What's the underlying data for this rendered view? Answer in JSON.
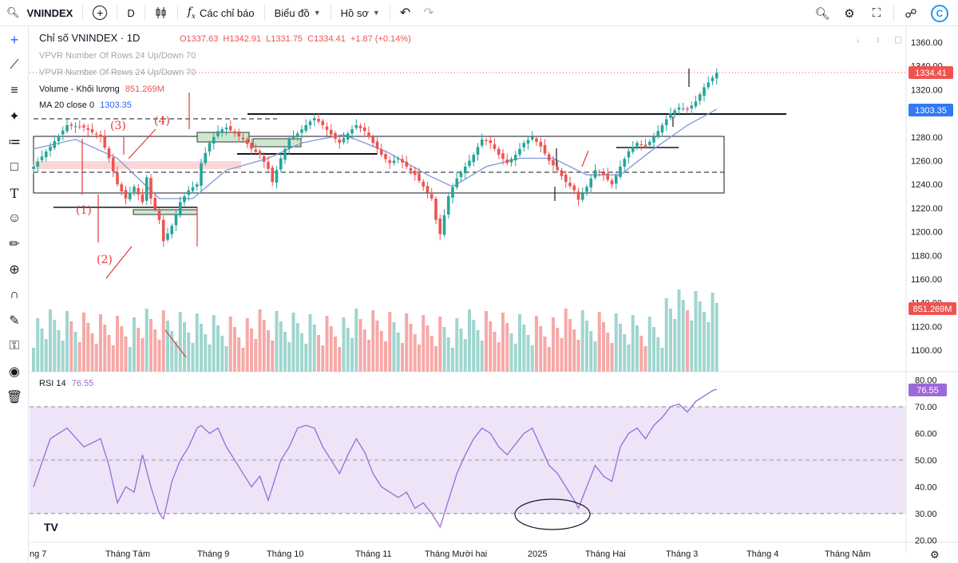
{
  "toolbar": {
    "symbol": "VNINDEX",
    "interval": "D",
    "indicators_label": "Các chỉ báo",
    "chart_label": "Biểu đồ",
    "profile_label": "Hồ sơ",
    "icons": [
      "search-icon",
      "add-symbol-icon",
      "candles-icon",
      "fx-icon",
      "undo-icon",
      "redo-icon",
      "snapshot-icon",
      "settings-icon",
      "fullscreen-icon",
      "share-icon",
      "tradingview-logo"
    ]
  },
  "left_tools": [
    "crosshair-icon",
    "trend-line-icon",
    "horizontal-lines-icon",
    "pattern-icon",
    "fib-icon",
    "rectangle-icon",
    "text-icon",
    "emoji-icon",
    "ruler-icon",
    "zoom-icon",
    "magnet-icon",
    "lock-drawing-icon",
    "lock-icon",
    "eye-icon",
    "trash-icon"
  ],
  "legend": {
    "title": "Chỉ số VNINDEX · 1D",
    "o": "O1337.63",
    "h": "H1342.91",
    "l": "L1331.75",
    "c": "C1334.41",
    "chg": "+1.87 (+0.14%)",
    "vpvr1": "VPVR Number Of Rows 24 Up/Down 70",
    "vpvr2": "VPVR Number Of Rows 24 Up/Down 70",
    "volume_label": "Volume - Khối lượng",
    "volume_value": "851.269M",
    "ma_label": "MA 20 close 0",
    "ma_value": "1303.35",
    "rsi_label": "RSI 14",
    "rsi_value": "76.55"
  },
  "price_axis": [
    "1360.00",
    "1340.00",
    "1320.00",
    "1300.00",
    "1280.00",
    "1260.00",
    "1240.00",
    "1220.00",
    "1200.00",
    "1180.00",
    "1160.00",
    "1140.00",
    "1120.00",
    "1100.00"
  ],
  "price_badges": {
    "last": "1334.41",
    "ma": "1303.35",
    "volume": "851.269M",
    "rsi": "76.55"
  },
  "rsi_axis": [
    "80.00",
    "70.00",
    "60.00",
    "50.00",
    "40.00",
    "30.00",
    "20.00"
  ],
  "time_axis": [
    "ng 7",
    "Tháng Tám",
    "Tháng 9",
    "Tháng 10",
    "Tháng 11",
    "Tháng Mười hai",
    "2025",
    "Tháng Hai",
    "Tháng 3",
    "Tháng 4",
    "Tháng Năm"
  ],
  "annotations": [
    "(1)",
    "(2)",
    "(3)",
    "(4)"
  ],
  "colors": {
    "up": "#26a69a",
    "down": "#ef5350",
    "ma": "#7e97d8",
    "rsi": "#9c6ad6",
    "rsi_band": "#ede4f8",
    "annotation": "#e53935"
  },
  "chart_data": {
    "type": "candlestick",
    "title": "Chỉ số VNINDEX · 1D",
    "ylim": [
      1100,
      1360
    ],
    "yticks": [
      1360,
      1340,
      1320,
      1300,
      1280,
      1260,
      1240,
      1220,
      1200,
      1180,
      1160,
      1140,
      1120,
      1100
    ],
    "x": [
      "ng 7",
      "Tháng Tám",
      "Tháng 9",
      "Tháng 10",
      "Tháng 11",
      "Tháng Mười hai",
      "2025",
      "Tháng Hai",
      "Tháng 3",
      "Tháng 4",
      "Tháng Năm"
    ],
    "price_points": [
      [
        0,
        1255
      ],
      [
        4,
        1272
      ],
      [
        8,
        1290
      ],
      [
        12,
        1288
      ],
      [
        16,
        1280
      ],
      [
        18,
        1262
      ],
      [
        20,
        1240
      ],
      [
        22,
        1228
      ],
      [
        24,
        1238
      ],
      [
        26,
        1225
      ],
      [
        27,
        1246
      ],
      [
        28,
        1228
      ],
      [
        30,
        1210
      ],
      [
        31,
        1192
      ],
      [
        33,
        1205
      ],
      [
        35,
        1225
      ],
      [
        37,
        1235
      ],
      [
        39,
        1240
      ],
      [
        40,
        1258
      ],
      [
        42,
        1275
      ],
      [
        44,
        1285
      ],
      [
        46,
        1288
      ],
      [
        48,
        1283
      ],
      [
        50,
        1278
      ],
      [
        52,
        1270
      ],
      [
        54,
        1265
      ],
      [
        56,
        1253
      ],
      [
        57,
        1242
      ],
      [
        59,
        1262
      ],
      [
        61,
        1278
      ],
      [
        63,
        1283
      ],
      [
        65,
        1290
      ],
      [
        67,
        1296
      ],
      [
        69,
        1290
      ],
      [
        71,
        1282
      ],
      [
        73,
        1275
      ],
      [
        75,
        1283
      ],
      [
        77,
        1290
      ],
      [
        79,
        1285
      ],
      [
        81,
        1275
      ],
      [
        83,
        1265
      ],
      [
        85,
        1258
      ],
      [
        87,
        1262
      ],
      [
        89,
        1255
      ],
      [
        91,
        1248
      ],
      [
        93,
        1238
      ],
      [
        95,
        1228
      ],
      [
        96,
        1210
      ],
      [
        97,
        1198
      ],
      [
        99,
        1230
      ],
      [
        101,
        1245
      ],
      [
        103,
        1255
      ],
      [
        105,
        1265
      ],
      [
        107,
        1278
      ],
      [
        109,
        1275
      ],
      [
        111,
        1265
      ],
      [
        113,
        1258
      ],
      [
        115,
        1265
      ],
      [
        117,
        1275
      ],
      [
        119,
        1280
      ],
      [
        121,
        1272
      ],
      [
        123,
        1260
      ],
      [
        125,
        1252
      ],
      [
        127,
        1242
      ],
      [
        129,
        1235
      ],
      [
        130,
        1227
      ],
      [
        132,
        1238
      ],
      [
        134,
        1252
      ],
      [
        136,
        1248
      ],
      [
        138,
        1240
      ],
      [
        140,
        1255
      ],
      [
        142,
        1268
      ],
      [
        144,
        1275
      ],
      [
        146,
        1272
      ],
      [
        148,
        1280
      ],
      [
        150,
        1290
      ],
      [
        152,
        1300
      ],
      [
        154,
        1305
      ],
      [
        156,
        1303
      ],
      [
        158,
        1310
      ],
      [
        160,
        1322
      ],
      [
        162,
        1330
      ],
      [
        163,
        1334.41
      ]
    ],
    "ma20_points": [
      [
        0,
        1270
      ],
      [
        10,
        1278
      ],
      [
        20,
        1262
      ],
      [
        30,
        1228
      ],
      [
        38,
        1228
      ],
      [
        46,
        1252
      ],
      [
        56,
        1262
      ],
      [
        64,
        1275
      ],
      [
        74,
        1282
      ],
      [
        84,
        1268
      ],
      [
        94,
        1248
      ],
      [
        100,
        1238
      ],
      [
        108,
        1255
      ],
      [
        116,
        1262
      ],
      [
        124,
        1262
      ],
      [
        132,
        1248
      ],
      [
        140,
        1248
      ],
      [
        148,
        1270
      ],
      [
        156,
        1290
      ],
      [
        163,
        1303.35
      ]
    ],
    "volume_ylim_note": "relative",
    "volume_last": "851.269M",
    "rsi": {
      "label": "RSI 14",
      "ylim": [
        20,
        80
      ],
      "upper": 70,
      "mid": 50,
      "lower": 30,
      "points": [
        [
          0,
          40
        ],
        [
          4,
          58
        ],
        [
          8,
          62
        ],
        [
          12,
          55
        ],
        [
          16,
          58
        ],
        [
          18,
          48
        ],
        [
          20,
          34
        ],
        [
          22,
          40
        ],
        [
          24,
          38
        ],
        [
          26,
          52
        ],
        [
          28,
          40
        ],
        [
          30,
          30
        ],
        [
          31,
          28
        ],
        [
          33,
          42
        ],
        [
          35,
          50
        ],
        [
          37,
          55
        ],
        [
          39,
          62
        ],
        [
          40,
          63
        ],
        [
          42,
          60
        ],
        [
          44,
          62
        ],
        [
          46,
          55
        ],
        [
          48,
          50
        ],
        [
          50,
          45
        ],
        [
          52,
          40
        ],
        [
          54,
          44
        ],
        [
          56,
          35
        ],
        [
          57,
          40
        ],
        [
          59,
          50
        ],
        [
          61,
          55
        ],
        [
          63,
          62
        ],
        [
          65,
          63
        ],
        [
          67,
          62
        ],
        [
          69,
          55
        ],
        [
          71,
          50
        ],
        [
          73,
          45
        ],
        [
          75,
          52
        ],
        [
          77,
          58
        ],
        [
          79,
          53
        ],
        [
          81,
          45
        ],
        [
          83,
          40
        ],
        [
          85,
          38
        ],
        [
          87,
          36
        ],
        [
          89,
          38
        ],
        [
          91,
          32
        ],
        [
          93,
          34
        ],
        [
          95,
          30
        ],
        [
          97,
          25
        ],
        [
          99,
          35
        ],
        [
          101,
          45
        ],
        [
          103,
          52
        ],
        [
          105,
          58
        ],
        [
          107,
          62
        ],
        [
          109,
          60
        ],
        [
          111,
          55
        ],
        [
          113,
          52
        ],
        [
          115,
          56
        ],
        [
          117,
          60
        ],
        [
          119,
          62
        ],
        [
          121,
          55
        ],
        [
          123,
          48
        ],
        [
          125,
          45
        ],
        [
          127,
          40
        ],
        [
          129,
          35
        ],
        [
          130,
          32
        ],
        [
          132,
          40
        ],
        [
          134,
          48
        ],
        [
          136,
          44
        ],
        [
          138,
          42
        ],
        [
          140,
          55
        ],
        [
          142,
          60
        ],
        [
          144,
          62
        ],
        [
          146,
          58
        ],
        [
          148,
          63
        ],
        [
          150,
          66
        ],
        [
          152,
          70
        ],
        [
          154,
          71
        ],
        [
          156,
          68
        ],
        [
          158,
          72
        ],
        [
          160,
          74
        ],
        [
          162,
          76
        ],
        [
          163,
          76.55
        ]
      ]
    }
  }
}
